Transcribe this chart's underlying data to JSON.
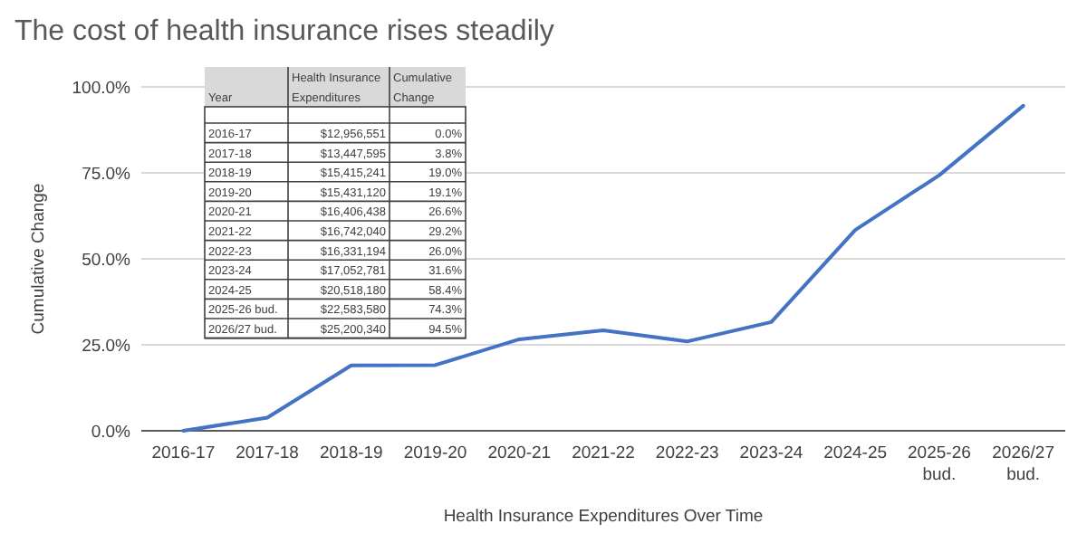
{
  "chart_data": {
    "type": "line",
    "title": "The cost of health insurance rises steadily",
    "xlabel": "Health Insurance Expenditures Over Time",
    "ylabel": "Cumulative  Change",
    "categories": [
      "2016-17",
      "2017-18",
      "2018-19",
      "2019-20",
      "2020-21",
      "2021-22",
      "2022-23",
      "2023-24",
      "2024-25",
      "2025-26 bud.",
      "2026/27 bud."
    ],
    "series": [
      {
        "color": "#4472c4",
        "values": [
          0.0,
          3.8,
          19.0,
          19.1,
          26.6,
          29.2,
          26.0,
          31.6,
          58.4,
          74.3,
          94.5
        ]
      }
    ],
    "annotations": [
      "Year",
      "Health Insurance Expenditures",
      "Cumulative Change",
      "$12,956,551",
      "$13,447,595",
      "$15,415,241",
      "$15,431,120",
      "$16,406,438",
      "$16,742,040",
      "$16,331,194",
      "$17,052,781",
      "$20,518,180",
      "$22,583,580",
      "$25,200,340",
      "0.0%",
      "3.8%",
      "19.0%",
      "19.1%",
      "26.6%",
      "29.2%",
      "26.0%",
      "31.6%",
      "58.4%",
      "74.3%",
      "94.5%"
    ],
    "ylim": [
      0,
      100
    ],
    "yticks": [
      {
        "value": 0,
        "label": "0.0%"
      },
      {
        "value": 25,
        "label": "25.0%"
      },
      {
        "value": 50,
        "label": "50.0%"
      },
      {
        "value": 75,
        "label": "75.0%"
      },
      {
        "value": 100,
        "label": "100.0%"
      }
    ],
    "grid": "y",
    "marker": "none",
    "line_style": "solid"
  }
}
